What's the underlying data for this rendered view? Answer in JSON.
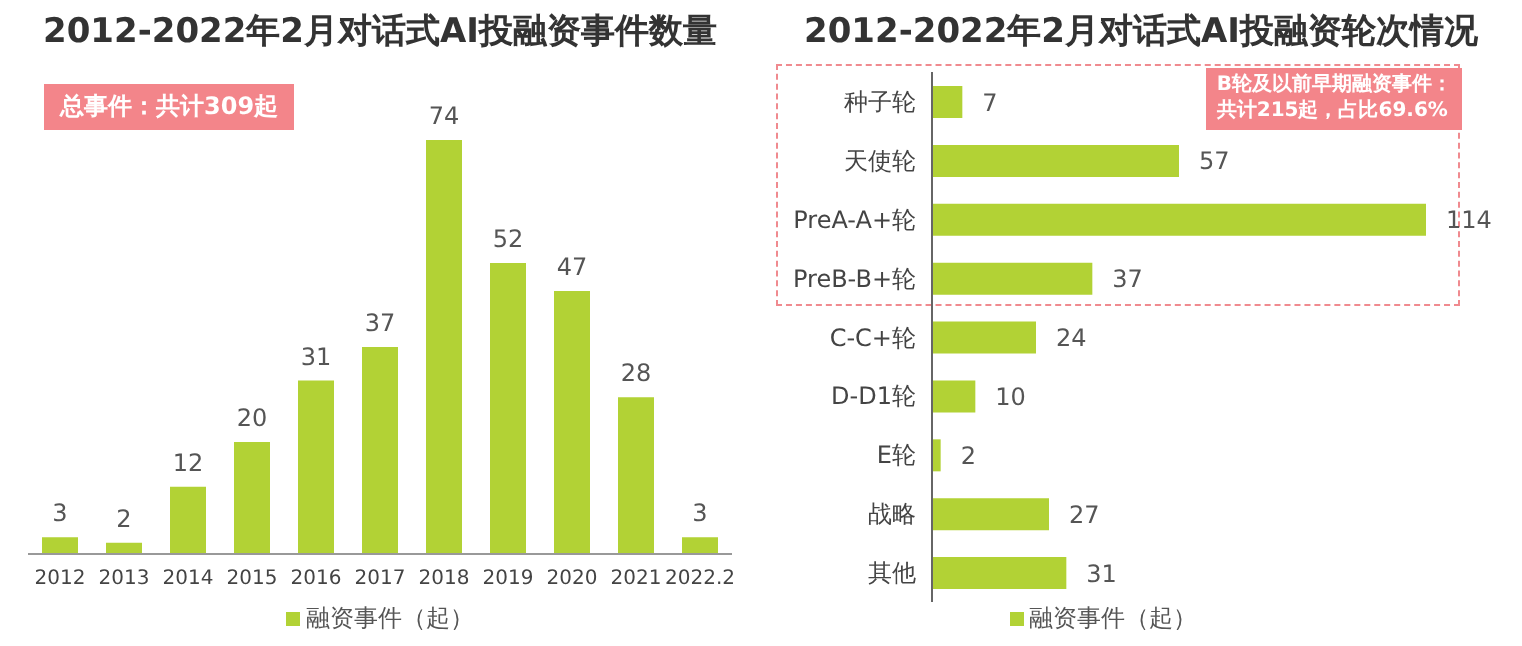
{
  "chart_data": [
    {
      "type": "bar",
      "title": "2012-2022年2月对话式AI投融资事件数量",
      "categories": [
        "2012",
        "2013",
        "2014",
        "2015",
        "2016",
        "2017",
        "2018",
        "2019",
        "2020",
        "2021",
        "2022.2"
      ],
      "series": [
        {
          "name": "融资事件（起）",
          "color": "#b2d235",
          "values": [
            3,
            2,
            12,
            20,
            31,
            37,
            74,
            52,
            47,
            28,
            3
          ]
        }
      ],
      "data_labels": true,
      "legend": "bottom",
      "grid": false,
      "annotations": [
        "总事件：共计309起"
      ]
    },
    {
      "type": "bar",
      "orientation": "horizontal",
      "title": "2012-2022年2月对话式AI投融资轮次情况",
      "categories": [
        "种子轮",
        "天使轮",
        "PreA-A+轮",
        "PreB-B+轮",
        "C-C+轮",
        "D-D1轮",
        "E轮",
        "战略",
        "其他"
      ],
      "series": [
        {
          "name": "融资事件（起）",
          "color": "#b2d235",
          "values": [
            7,
            57,
            114,
            37,
            24,
            10,
            2,
            27,
            31
          ]
        }
      ],
      "data_labels": true,
      "legend": "bottom",
      "grid": false,
      "annotations": [
        "B轮及以前早期融资事件：",
        "共计215起，占比69.6%"
      ]
    }
  ]
}
